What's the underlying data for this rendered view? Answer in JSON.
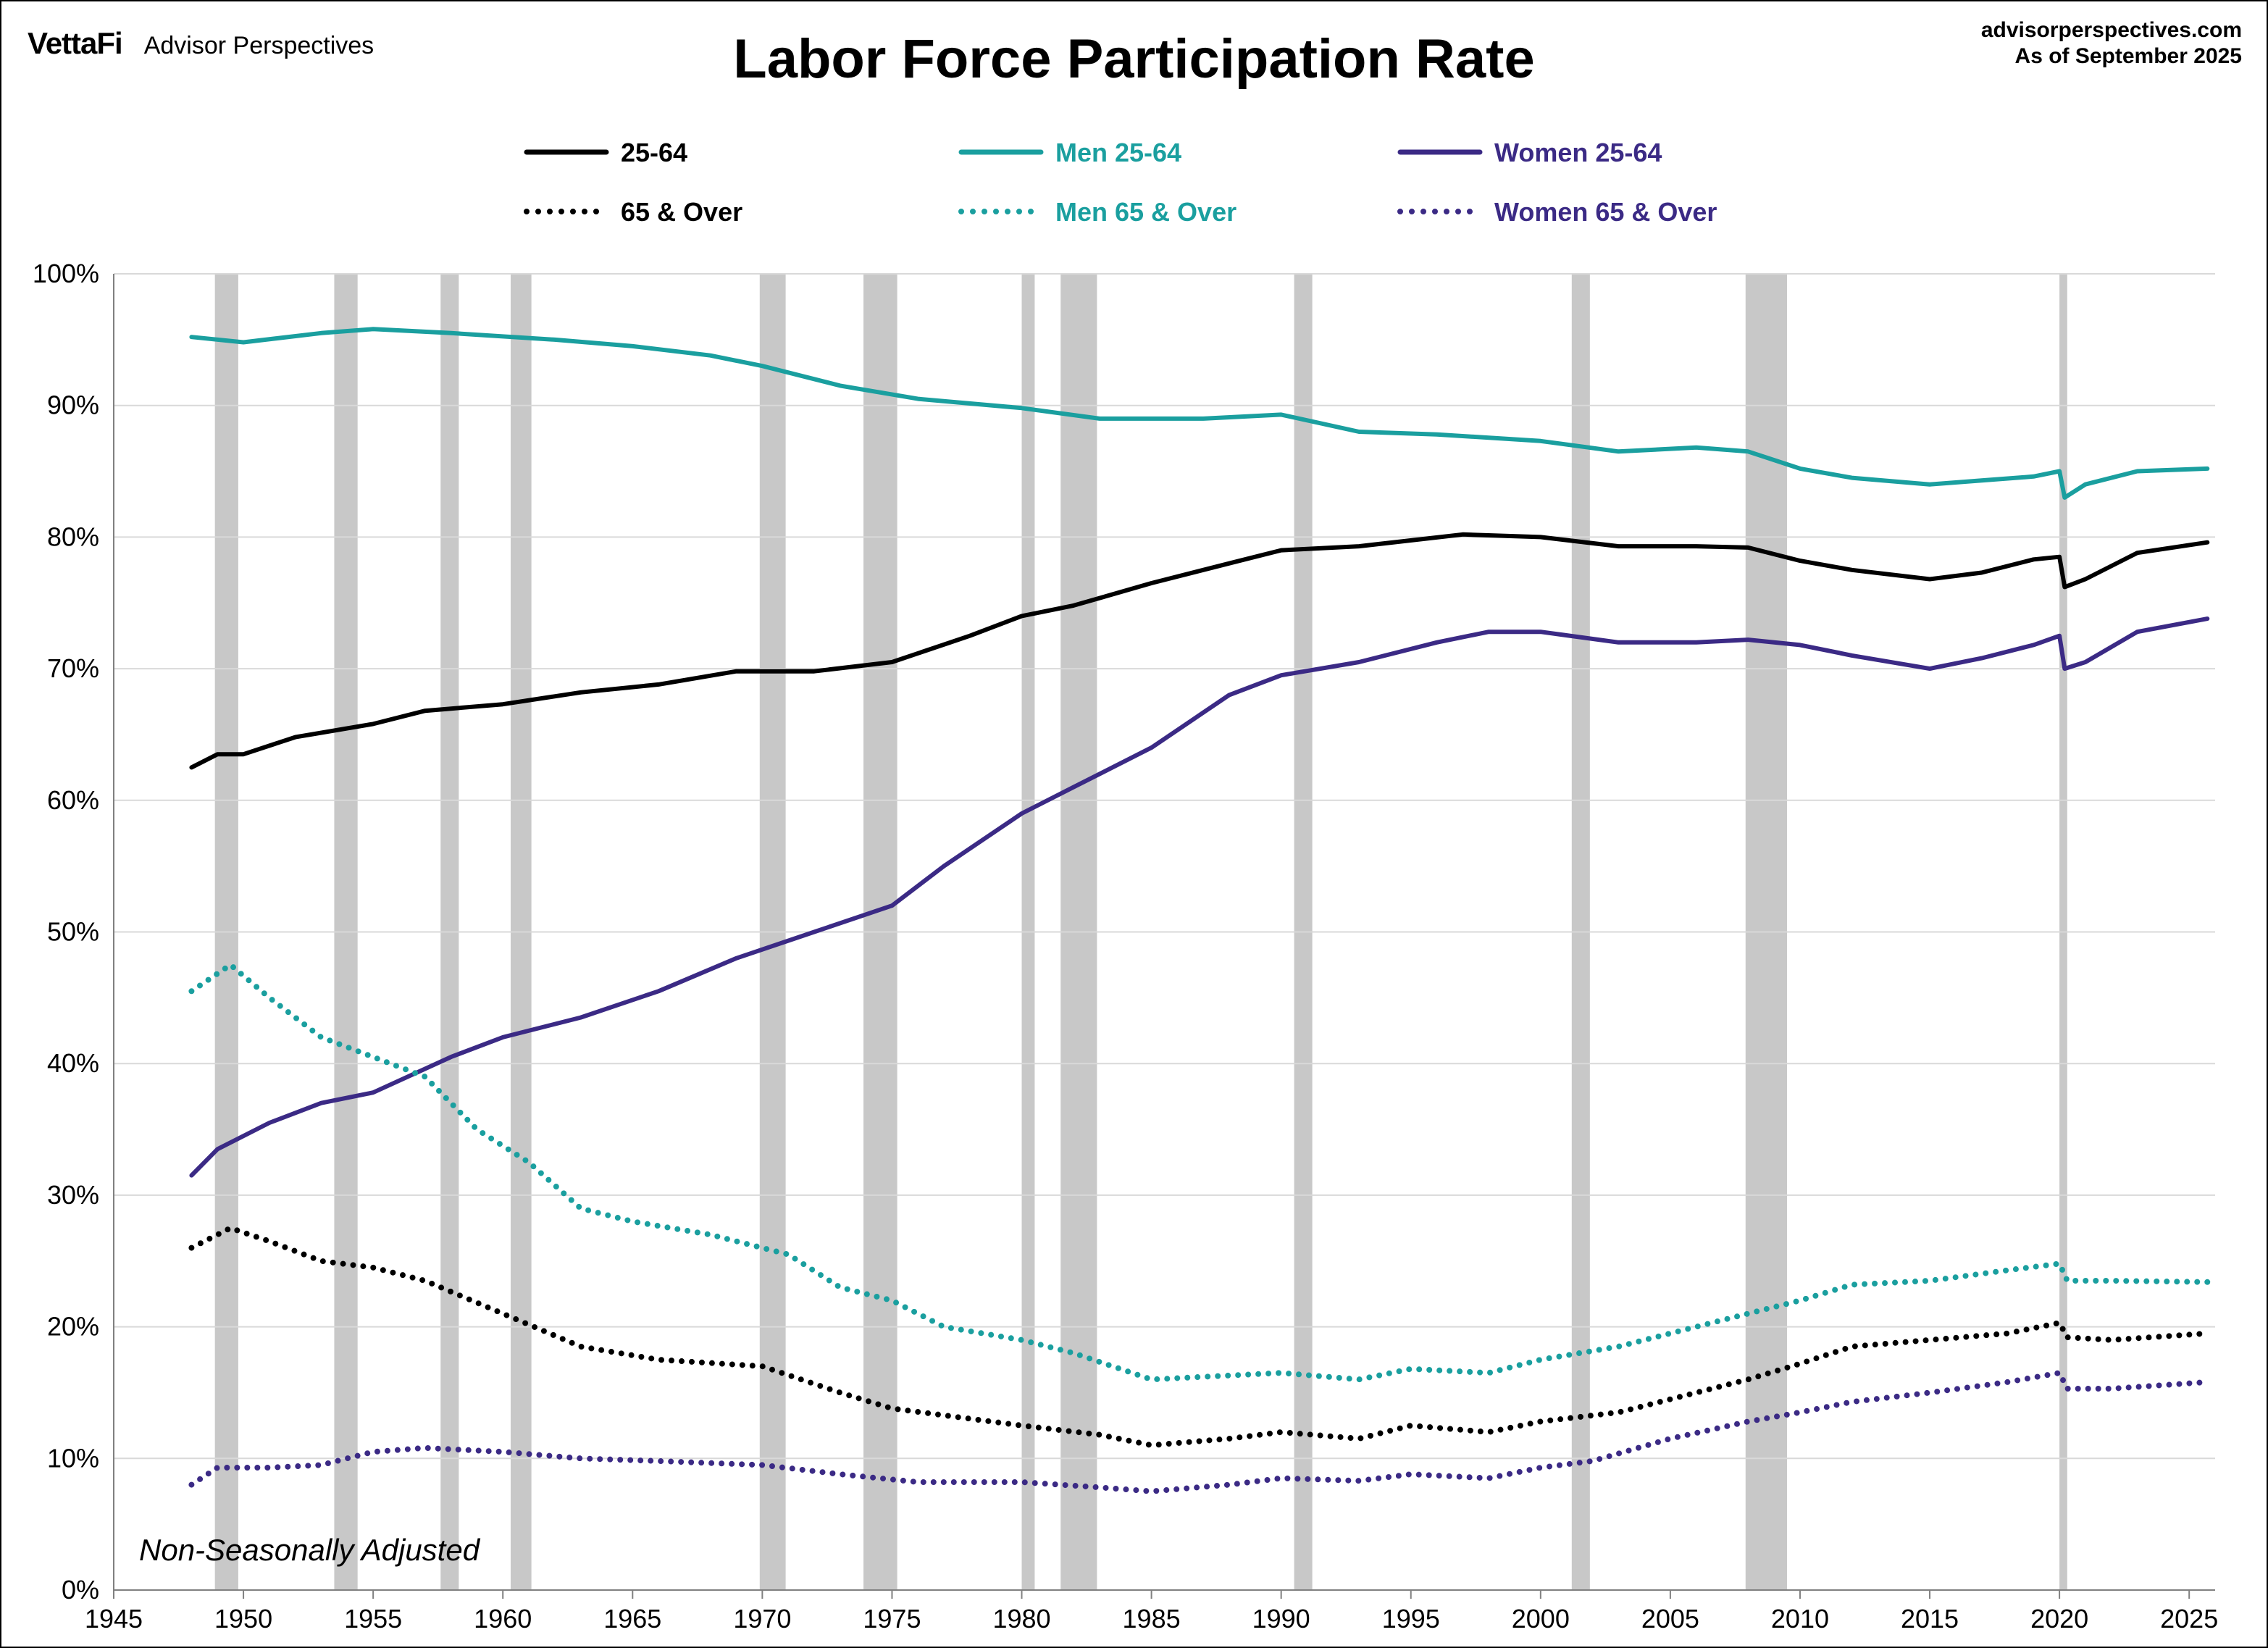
{
  "header": {
    "logo": "VettaFi",
    "brand": "Advisor Perspectives",
    "site": "advisorperspectives.com",
    "as_of": "As of September 2025"
  },
  "chart_data": {
    "type": "line",
    "title": "Labor Force Participation Rate",
    "note": "Non-Seasonally Adjusted",
    "xlim": [
      1945,
      2026
    ],
    "ylim": [
      0,
      100
    ],
    "x_ticks": [
      1945,
      1950,
      1955,
      1960,
      1965,
      1970,
      1975,
      1980,
      1985,
      1990,
      1995,
      2000,
      2005,
      2010,
      2015,
      2020,
      2025
    ],
    "y_ticks": [
      "0%",
      "10%",
      "20%",
      "30%",
      "40%",
      "50%",
      "60%",
      "70%",
      "80%",
      "90%",
      "100%"
    ],
    "grid": "horizontal",
    "legend_position": "top",
    "recessions": [
      [
        1948.9,
        1949.8
      ],
      [
        1953.5,
        1954.4
      ],
      [
        1957.6,
        1958.3
      ],
      [
        1960.3,
        1961.1
      ],
      [
        1969.9,
        1970.9
      ],
      [
        1973.9,
        1975.2
      ],
      [
        1980.0,
        1980.5
      ],
      [
        1981.5,
        1982.9
      ],
      [
        1990.5,
        1991.2
      ],
      [
        2001.2,
        2001.9
      ],
      [
        2007.9,
        2009.5
      ],
      [
        2020.0,
        2020.3
      ]
    ],
    "colors": {
      "total": "#000000",
      "men": "#1a9f9f",
      "women": "#3b2a85",
      "recession": "#c8c8c8",
      "grid": "#d9d9d9"
    },
    "series": [
      {
        "name": "25-64",
        "style": "solid",
        "color": "#000000",
        "points": [
          [
            1948,
            62.5
          ],
          [
            1949,
            63.5
          ],
          [
            1950,
            63.5
          ],
          [
            1952,
            64.8
          ],
          [
            1955,
            65.8
          ],
          [
            1957,
            66.8
          ],
          [
            1960,
            67.3
          ],
          [
            1963,
            68.2
          ],
          [
            1966,
            68.8
          ],
          [
            1969,
            69.8
          ],
          [
            1972,
            69.8
          ],
          [
            1975,
            70.5
          ],
          [
            1978,
            72.5
          ],
          [
            1980,
            74.0
          ],
          [
            1982,
            74.8
          ],
          [
            1985,
            76.5
          ],
          [
            1988,
            78.0
          ],
          [
            1990,
            79.0
          ],
          [
            1993,
            79.3
          ],
          [
            1997,
            80.2
          ],
          [
            2000,
            80.0
          ],
          [
            2003,
            79.3
          ],
          [
            2006,
            79.3
          ],
          [
            2008,
            79.2
          ],
          [
            2010,
            78.2
          ],
          [
            2012,
            77.5
          ],
          [
            2015,
            76.8
          ],
          [
            2017,
            77.3
          ],
          [
            2019,
            78.3
          ],
          [
            2020.0,
            78.5
          ],
          [
            2020.2,
            76.2
          ],
          [
            2021,
            76.8
          ],
          [
            2023,
            78.8
          ],
          [
            2025.7,
            79.6
          ]
        ]
      },
      {
        "name": "Men 25-64",
        "style": "solid",
        "color": "#1a9f9f",
        "points": [
          [
            1948,
            95.2
          ],
          [
            1950,
            94.8
          ],
          [
            1953,
            95.5
          ],
          [
            1955,
            95.8
          ],
          [
            1958,
            95.5
          ],
          [
            1962,
            95.0
          ],
          [
            1965,
            94.5
          ],
          [
            1968,
            93.8
          ],
          [
            1970,
            93.0
          ],
          [
            1973,
            91.5
          ],
          [
            1976,
            90.5
          ],
          [
            1980,
            89.8
          ],
          [
            1983,
            89.0
          ],
          [
            1987,
            89.0
          ],
          [
            1990,
            89.3
          ],
          [
            1993,
            88.0
          ],
          [
            1996,
            87.8
          ],
          [
            2000,
            87.3
          ],
          [
            2003,
            86.5
          ],
          [
            2006,
            86.8
          ],
          [
            2008,
            86.5
          ],
          [
            2010,
            85.2
          ],
          [
            2012,
            84.5
          ],
          [
            2015,
            84.0
          ],
          [
            2017,
            84.3
          ],
          [
            2019,
            84.6
          ],
          [
            2020.0,
            85.0
          ],
          [
            2020.2,
            83.0
          ],
          [
            2021,
            84.0
          ],
          [
            2023,
            85.0
          ],
          [
            2025.7,
            85.2
          ]
        ]
      },
      {
        "name": "Women 25-64",
        "style": "solid",
        "color": "#3b2a85",
        "points": [
          [
            1948,
            31.5
          ],
          [
            1949,
            33.5
          ],
          [
            1951,
            35.5
          ],
          [
            1953,
            37.0
          ],
          [
            1955,
            37.8
          ],
          [
            1958,
            40.5
          ],
          [
            1960,
            42.0
          ],
          [
            1963,
            43.5
          ],
          [
            1966,
            45.5
          ],
          [
            1969,
            48.0
          ],
          [
            1972,
            50.0
          ],
          [
            1975,
            52.0
          ],
          [
            1977,
            55.0
          ],
          [
            1980,
            59.0
          ],
          [
            1982,
            61.0
          ],
          [
            1985,
            64.0
          ],
          [
            1988,
            68.0
          ],
          [
            1990,
            69.5
          ],
          [
            1993,
            70.5
          ],
          [
            1996,
            72.0
          ],
          [
            1998,
            72.8
          ],
          [
            2000,
            72.8
          ],
          [
            2003,
            72.0
          ],
          [
            2006,
            72.0
          ],
          [
            2008,
            72.2
          ],
          [
            2010,
            71.8
          ],
          [
            2012,
            71.0
          ],
          [
            2015,
            70.0
          ],
          [
            2017,
            70.8
          ],
          [
            2019,
            71.8
          ],
          [
            2020.0,
            72.5
          ],
          [
            2020.2,
            70.0
          ],
          [
            2021,
            70.5
          ],
          [
            2023,
            72.8
          ],
          [
            2025.7,
            73.8
          ]
        ]
      },
      {
        "name": "65 & Over",
        "style": "dotted",
        "color": "#000000",
        "points": [
          [
            1948,
            26.0
          ],
          [
            1949.5,
            27.5
          ],
          [
            1951,
            26.5
          ],
          [
            1953,
            25.0
          ],
          [
            1955,
            24.5
          ],
          [
            1957,
            23.5
          ],
          [
            1960,
            21.0
          ],
          [
            1963,
            18.5
          ],
          [
            1966,
            17.5
          ],
          [
            1970,
            17.0
          ],
          [
            1973,
            15.0
          ],
          [
            1975,
            13.8
          ],
          [
            1980,
            12.5
          ],
          [
            1983,
            11.8
          ],
          [
            1985,
            11.0
          ],
          [
            1988,
            11.5
          ],
          [
            1990,
            12.0
          ],
          [
            1993,
            11.5
          ],
          [
            1995,
            12.5
          ],
          [
            1998,
            12.0
          ],
          [
            2000,
            12.8
          ],
          [
            2003,
            13.5
          ],
          [
            2006,
            15.0
          ],
          [
            2008,
            16.0
          ],
          [
            2010,
            17.2
          ],
          [
            2012,
            18.5
          ],
          [
            2015,
            19.0
          ],
          [
            2018,
            19.5
          ],
          [
            2020.0,
            20.3
          ],
          [
            2020.3,
            19.2
          ],
          [
            2022,
            19.0
          ],
          [
            2025.7,
            19.5
          ]
        ]
      },
      {
        "name": "Men 65 & Over",
        "style": "dotted",
        "color": "#1a9f9f",
        "points": [
          [
            1948,
            45.5
          ],
          [
            1949.5,
            47.5
          ],
          [
            1951,
            45.0
          ],
          [
            1953,
            42.0
          ],
          [
            1955,
            40.5
          ],
          [
            1957,
            39.0
          ],
          [
            1959,
            35.0
          ],
          [
            1961,
            32.5
          ],
          [
            1963,
            29.0
          ],
          [
            1965,
            28.0
          ],
          [
            1968,
            27.0
          ],
          [
            1971,
            25.5
          ],
          [
            1973,
            23.0
          ],
          [
            1975,
            22.0
          ],
          [
            1977,
            20.0
          ],
          [
            1980,
            19.0
          ],
          [
            1982,
            18.0
          ],
          [
            1985,
            16.0
          ],
          [
            1988,
            16.3
          ],
          [
            1990,
            16.5
          ],
          [
            1993,
            16.0
          ],
          [
            1995,
            16.8
          ],
          [
            1998,
            16.5
          ],
          [
            2000,
            17.5
          ],
          [
            2003,
            18.5
          ],
          [
            2005,
            19.5
          ],
          [
            2008,
            21.0
          ],
          [
            2010,
            22.0
          ],
          [
            2012,
            23.2
          ],
          [
            2015,
            23.5
          ],
          [
            2018,
            24.3
          ],
          [
            2020.0,
            24.8
          ],
          [
            2020.3,
            23.5
          ],
          [
            2022,
            23.5
          ],
          [
            2025.7,
            23.4
          ]
        ]
      },
      {
        "name": "Women 65 & Over",
        "style": "dotted",
        "color": "#3b2a85",
        "points": [
          [
            1948,
            8.0
          ],
          [
            1949,
            9.3
          ],
          [
            1951,
            9.3
          ],
          [
            1953,
            9.5
          ],
          [
            1955,
            10.5
          ],
          [
            1957,
            10.8
          ],
          [
            1960,
            10.5
          ],
          [
            1963,
            10.0
          ],
          [
            1966,
            9.8
          ],
          [
            1970,
            9.5
          ],
          [
            1973,
            8.8
          ],
          [
            1976,
            8.2
          ],
          [
            1980,
            8.2
          ],
          [
            1983,
            7.8
          ],
          [
            1985,
            7.5
          ],
          [
            1988,
            8.0
          ],
          [
            1990,
            8.5
          ],
          [
            1993,
            8.3
          ],
          [
            1995,
            8.8
          ],
          [
            1998,
            8.5
          ],
          [
            2000,
            9.3
          ],
          [
            2002,
            9.8
          ],
          [
            2005,
            11.5
          ],
          [
            2008,
            12.8
          ],
          [
            2010,
            13.5
          ],
          [
            2012,
            14.3
          ],
          [
            2015,
            15.0
          ],
          [
            2018,
            15.8
          ],
          [
            2020.0,
            16.5
          ],
          [
            2020.3,
            15.3
          ],
          [
            2022,
            15.3
          ],
          [
            2025.7,
            15.8
          ]
        ]
      }
    ]
  }
}
